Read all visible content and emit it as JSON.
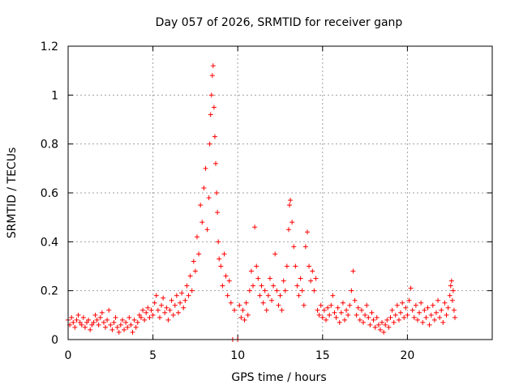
{
  "chart_data": {
    "type": "scatter",
    "title": "Day 057 of 2026, SRMTID for receiver ganp",
    "xlabel": "GPS time / hours",
    "ylabel": "SRMTID / TECUs",
    "xlim": [
      0,
      25
    ],
    "ylim": [
      0,
      1.2
    ],
    "xticks": [
      0,
      5,
      10,
      15,
      20
    ],
    "yticks": [
      0,
      0.2,
      0.4,
      0.6,
      0.8,
      1,
      1.2
    ],
    "xtick_labels": [
      "0",
      "5",
      "10",
      "15",
      "20"
    ],
    "ytick_labels": [
      "0",
      "0.2",
      "0.4",
      "0.6",
      "0.8",
      "1",
      "1.2"
    ],
    "grid": true,
    "marker": "+",
    "color": "#ff0000",
    "series": [
      {
        "name": "SRMTID",
        "points": [
          [
            0.0,
            0.08
          ],
          [
            0.1,
            0.06
          ],
          [
            0.2,
            0.09
          ],
          [
            0.3,
            0.07
          ],
          [
            0.4,
            0.05
          ],
          [
            0.5,
            0.08
          ],
          [
            0.6,
            0.1
          ],
          [
            0.7,
            0.07
          ],
          [
            0.8,
            0.06
          ],
          [
            0.9,
            0.09
          ],
          [
            1.0,
            0.05
          ],
          [
            1.1,
            0.07
          ],
          [
            1.2,
            0.08
          ],
          [
            1.3,
            0.04
          ],
          [
            1.4,
            0.06
          ],
          [
            1.5,
            0.07
          ],
          [
            1.6,
            0.1
          ],
          [
            1.7,
            0.08
          ],
          [
            1.8,
            0.06
          ],
          [
            1.9,
            0.09
          ],
          [
            2.0,
            0.11
          ],
          [
            2.1,
            0.07
          ],
          [
            2.2,
            0.05
          ],
          [
            2.3,
            0.08
          ],
          [
            2.4,
            0.12
          ],
          [
            2.5,
            0.06
          ],
          [
            2.6,
            0.04
          ],
          [
            2.7,
            0.07
          ],
          [
            2.8,
            0.09
          ],
          [
            2.9,
            0.05
          ],
          [
            3.0,
            0.03
          ],
          [
            3.1,
            0.06
          ],
          [
            3.2,
            0.08
          ],
          [
            3.3,
            0.04
          ],
          [
            3.4,
            0.07
          ],
          [
            3.5,
            0.05
          ],
          [
            3.6,
            0.09
          ],
          [
            3.7,
            0.06
          ],
          [
            3.8,
            0.03
          ],
          [
            3.9,
            0.08
          ],
          [
            4.0,
            0.05
          ],
          [
            4.1,
            0.07
          ],
          [
            4.2,
            0.1
          ],
          [
            4.3,
            0.09
          ],
          [
            4.4,
            0.12
          ],
          [
            4.5,
            0.08
          ],
          [
            4.6,
            0.11
          ],
          [
            4.7,
            0.13
          ],
          [
            4.8,
            0.09
          ],
          [
            4.9,
            0.12
          ],
          [
            5.0,
            0.1
          ],
          [
            5.1,
            0.15
          ],
          [
            5.2,
            0.18
          ],
          [
            5.3,
            0.12
          ],
          [
            5.4,
            0.09
          ],
          [
            5.5,
            0.14
          ],
          [
            5.6,
            0.17
          ],
          [
            5.7,
            0.11
          ],
          [
            5.8,
            0.13
          ],
          [
            5.9,
            0.08
          ],
          [
            6.0,
            0.12
          ],
          [
            6.1,
            0.16
          ],
          [
            6.2,
            0.1
          ],
          [
            6.3,
            0.14
          ],
          [
            6.4,
            0.18
          ],
          [
            6.5,
            0.11
          ],
          [
            6.6,
            0.15
          ],
          [
            6.7,
            0.19
          ],
          [
            6.8,
            0.13
          ],
          [
            6.9,
            0.16
          ],
          [
            7.0,
            0.22
          ],
          [
            7.1,
            0.18
          ],
          [
            7.2,
            0.26
          ],
          [
            7.3,
            0.2
          ],
          [
            7.4,
            0.32
          ],
          [
            7.5,
            0.28
          ],
          [
            7.6,
            0.42
          ],
          [
            7.7,
            0.35
          ],
          [
            7.8,
            0.55
          ],
          [
            7.9,
            0.48
          ],
          [
            8.0,
            0.62
          ],
          [
            8.1,
            0.7
          ],
          [
            8.2,
            0.45
          ],
          [
            8.3,
            0.58
          ],
          [
            8.35,
            0.8
          ],
          [
            8.4,
            0.92
          ],
          [
            8.45,
            1.0
          ],
          [
            8.5,
            1.08
          ],
          [
            8.55,
            1.12
          ],
          [
            8.6,
            0.95
          ],
          [
            8.65,
            0.83
          ],
          [
            8.7,
            0.72
          ],
          [
            8.75,
            0.6
          ],
          [
            8.8,
            0.52
          ],
          [
            8.85,
            0.4
          ],
          [
            8.9,
            0.33
          ],
          [
            9.0,
            0.3
          ],
          [
            9.1,
            0.22
          ],
          [
            9.2,
            0.35
          ],
          [
            9.3,
            0.26
          ],
          [
            9.4,
            0.18
          ],
          [
            9.5,
            0.24
          ],
          [
            9.6,
            0.15
          ],
          [
            9.7,
            0.0
          ],
          [
            9.8,
            0.12
          ],
          [
            10.0,
            0.0
          ],
          [
            10.1,
            0.14
          ],
          [
            10.2,
            0.09
          ],
          [
            10.3,
            0.12
          ],
          [
            10.4,
            0.08
          ],
          [
            10.5,
            0.15
          ],
          [
            10.6,
            0.1
          ],
          [
            10.7,
            0.2
          ],
          [
            10.8,
            0.28
          ],
          [
            10.9,
            0.22
          ],
          [
            11.0,
            0.46
          ],
          [
            11.1,
            0.3
          ],
          [
            11.2,
            0.25
          ],
          [
            11.3,
            0.18
          ],
          [
            11.4,
            0.22
          ],
          [
            11.5,
            0.15
          ],
          [
            11.6,
            0.2
          ],
          [
            11.7,
            0.12
          ],
          [
            11.8,
            0.18
          ],
          [
            11.9,
            0.25
          ],
          [
            12.0,
            0.16
          ],
          [
            12.1,
            0.22
          ],
          [
            12.2,
            0.35
          ],
          [
            12.3,
            0.2
          ],
          [
            12.4,
            0.14
          ],
          [
            12.5,
            0.18
          ],
          [
            12.6,
            0.12
          ],
          [
            12.7,
            0.24
          ],
          [
            12.8,
            0.2
          ],
          [
            12.9,
            0.3
          ],
          [
            13.0,
            0.45
          ],
          [
            13.05,
            0.55
          ],
          [
            13.1,
            0.57
          ],
          [
            13.2,
            0.48
          ],
          [
            13.3,
            0.38
          ],
          [
            13.4,
            0.3
          ],
          [
            13.5,
            0.22
          ],
          [
            13.6,
            0.18
          ],
          [
            13.7,
            0.25
          ],
          [
            13.8,
            0.2
          ],
          [
            13.9,
            0.14
          ],
          [
            14.0,
            0.38
          ],
          [
            14.1,
            0.44
          ],
          [
            14.2,
            0.3
          ],
          [
            14.3,
            0.24
          ],
          [
            14.4,
            0.28
          ],
          [
            14.5,
            0.2
          ],
          [
            14.6,
            0.25
          ],
          [
            14.7,
            0.12
          ],
          [
            14.8,
            0.1
          ],
          [
            14.9,
            0.14
          ],
          [
            15.0,
            0.09
          ],
          [
            15.1,
            0.12
          ],
          [
            15.2,
            0.08
          ],
          [
            15.3,
            0.13
          ],
          [
            15.4,
            0.1
          ],
          [
            15.5,
            0.14
          ],
          [
            15.6,
            0.18
          ],
          [
            15.7,
            0.11
          ],
          [
            15.8,
            0.09
          ],
          [
            15.9,
            0.13
          ],
          [
            16.0,
            0.07
          ],
          [
            16.1,
            0.11
          ],
          [
            16.2,
            0.15
          ],
          [
            16.3,
            0.08
          ],
          [
            16.4,
            0.12
          ],
          [
            16.5,
            0.1
          ],
          [
            16.6,
            0.14
          ],
          [
            16.7,
            0.2
          ],
          [
            16.8,
            0.28
          ],
          [
            16.9,
            0.16
          ],
          [
            17.0,
            0.1
          ],
          [
            17.1,
            0.13
          ],
          [
            17.2,
            0.08
          ],
          [
            17.3,
            0.12
          ],
          [
            17.4,
            0.07
          ],
          [
            17.5,
            0.1
          ],
          [
            17.6,
            0.14
          ],
          [
            17.7,
            0.09
          ],
          [
            17.8,
            0.06
          ],
          [
            17.9,
            0.11
          ],
          [
            18.0,
            0.08
          ],
          [
            18.1,
            0.05
          ],
          [
            18.2,
            0.09
          ],
          [
            18.3,
            0.06
          ],
          [
            18.4,
            0.04
          ],
          [
            18.5,
            0.07
          ],
          [
            18.6,
            0.03
          ],
          [
            18.7,
            0.06
          ],
          [
            18.8,
            0.08
          ],
          [
            18.9,
            0.05
          ],
          [
            19.0,
            0.09
          ],
          [
            19.1,
            0.12
          ],
          [
            19.2,
            0.07
          ],
          [
            19.3,
            0.1
          ],
          [
            19.4,
            0.14
          ],
          [
            19.5,
            0.08
          ],
          [
            19.6,
            0.11
          ],
          [
            19.7,
            0.15
          ],
          [
            19.8,
            0.09
          ],
          [
            19.9,
            0.13
          ],
          [
            20.0,
            0.1
          ],
          [
            20.1,
            0.16
          ],
          [
            20.2,
            0.21
          ],
          [
            20.3,
            0.12
          ],
          [
            20.4,
            0.09
          ],
          [
            20.5,
            0.14
          ],
          [
            20.6,
            0.08
          ],
          [
            20.7,
            0.11
          ],
          [
            20.8,
            0.15
          ],
          [
            20.9,
            0.07
          ],
          [
            21.0,
            0.12
          ],
          [
            21.1,
            0.09
          ],
          [
            21.2,
            0.13
          ],
          [
            21.3,
            0.06
          ],
          [
            21.4,
            0.1
          ],
          [
            21.5,
            0.14
          ],
          [
            21.6,
            0.08
          ],
          [
            21.7,
            0.11
          ],
          [
            21.8,
            0.16
          ],
          [
            21.9,
            0.09
          ],
          [
            22.0,
            0.12
          ],
          [
            22.1,
            0.07
          ],
          [
            22.2,
            0.15
          ],
          [
            22.3,
            0.1
          ],
          [
            22.4,
            0.13
          ],
          [
            22.5,
            0.18
          ],
          [
            22.55,
            0.22
          ],
          [
            22.6,
            0.24
          ],
          [
            22.65,
            0.16
          ],
          [
            22.7,
            0.2
          ],
          [
            22.75,
            0.12
          ],
          [
            22.8,
            0.09
          ]
        ]
      }
    ]
  }
}
